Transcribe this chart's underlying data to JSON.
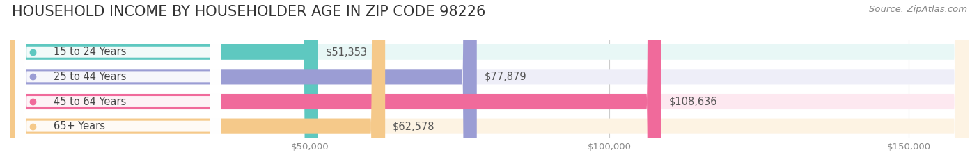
{
  "title": "HOUSEHOLD INCOME BY HOUSEHOLDER AGE IN ZIP CODE 98226",
  "source": "Source: ZipAtlas.com",
  "categories": [
    "15 to 24 Years",
    "25 to 44 Years",
    "45 to 64 Years",
    "65+ Years"
  ],
  "values": [
    51353,
    77879,
    108636,
    62578
  ],
  "bar_colors": [
    "#5ec8c0",
    "#9b9dd4",
    "#f06a9b",
    "#f5c98a"
  ],
  "bar_bg_colors": [
    "#e8f7f6",
    "#eeeef8",
    "#fde8f0",
    "#fdf3e3"
  ],
  "value_labels": [
    "$51,353",
    "$77,879",
    "$108,636",
    "$62,578"
  ],
  "xmax": 160000,
  "xticks": [
    0,
    50000,
    100000,
    150000
  ],
  "xtick_labels": [
    "$50,000",
    "$100,000",
    "$150,000"
  ],
  "background_color": "#ffffff",
  "title_fontsize": 15,
  "label_fontsize": 10.5,
  "value_fontsize": 10.5,
  "source_fontsize": 9.5
}
